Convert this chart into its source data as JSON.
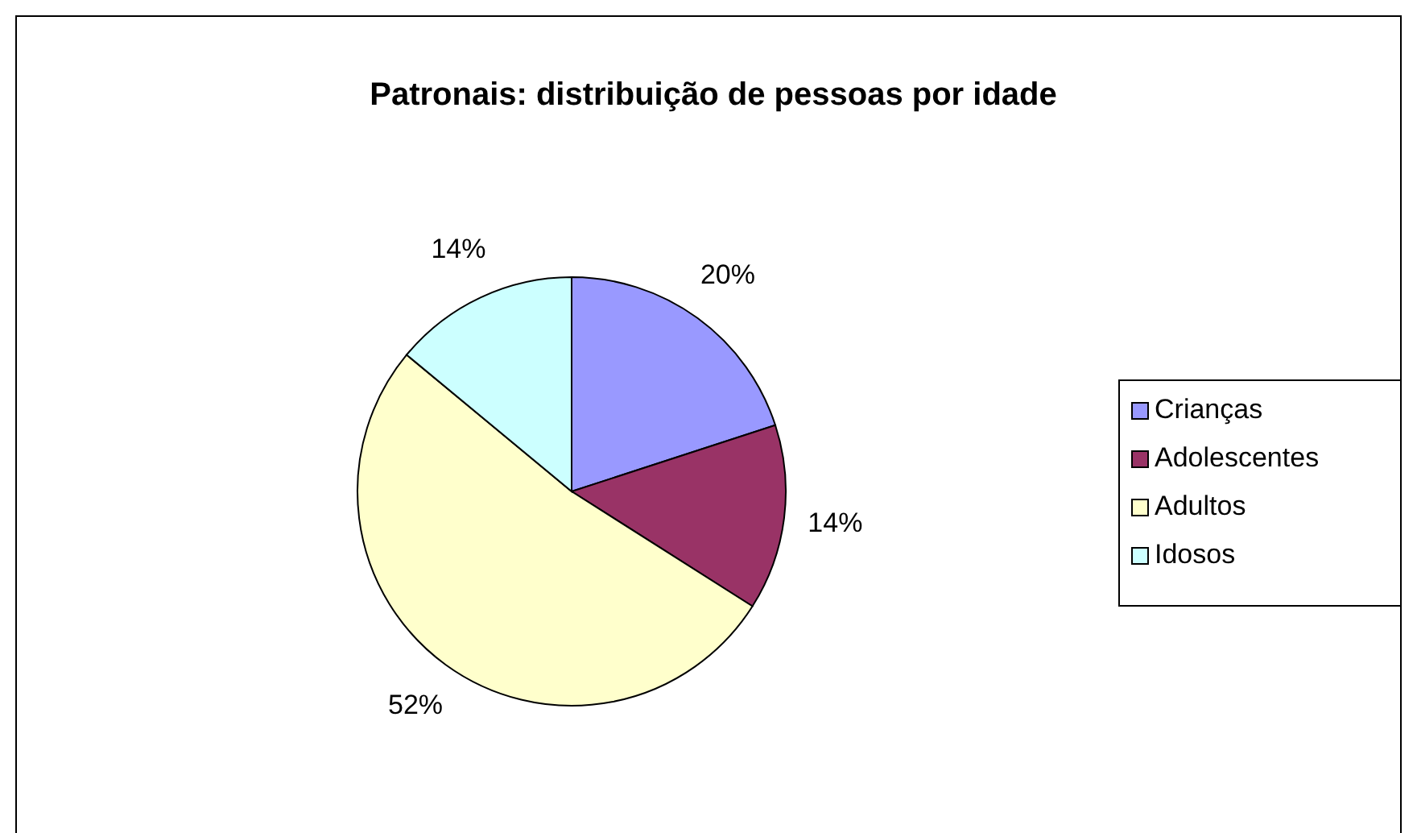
{
  "chart_data": {
    "type": "pie",
    "title": "Patronais: distribuição de pessoas por idade",
    "categories": [
      "Crianças",
      "Adolescentes",
      "Adultos",
      "Idosos"
    ],
    "values": [
      20,
      14,
      52,
      14
    ],
    "colors": [
      "#9999ff",
      "#993366",
      "#ffffcc",
      "#ccffff"
    ],
    "value_labels": [
      "20%",
      "14%",
      "52%",
      "14%"
    ],
    "legend": "right"
  }
}
